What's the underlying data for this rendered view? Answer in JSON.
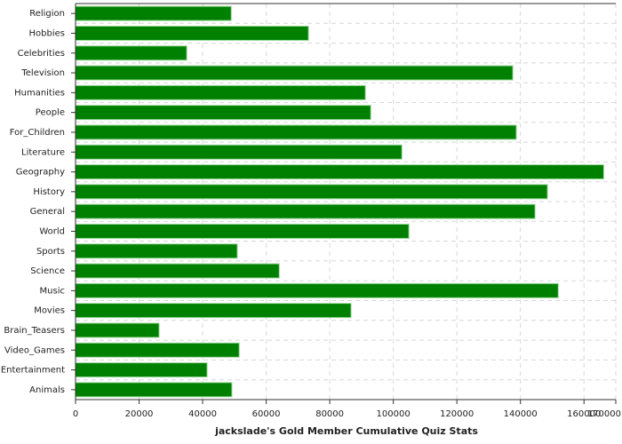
{
  "chart_data": {
    "type": "hbar",
    "title": "jackslade's Gold Member Cumulative Quiz Stats",
    "categories": [
      "Religion",
      "Hobbies",
      "Celebrities",
      "Television",
      "Humanities",
      "People",
      "For_Children",
      "Literature",
      "Geography",
      "History",
      "General",
      "World",
      "Sports",
      "Science",
      "Music",
      "Movies",
      "Brain_Teasers",
      "Video_Games",
      "Entertainment",
      "Animals"
    ],
    "values": [
      49000,
      73300,
      35000,
      137600,
      91200,
      92900,
      138700,
      102700,
      166200,
      148500,
      144600,
      104900,
      50900,
      64100,
      151900,
      86700,
      26300,
      51500,
      41400,
      49200
    ],
    "color": "#008000",
    "xlim": [
      0,
      170000
    ],
    "xticks": [
      0,
      20000,
      40000,
      60000,
      80000,
      100000,
      120000,
      140000,
      160000,
      170000
    ],
    "grid": true
  }
}
